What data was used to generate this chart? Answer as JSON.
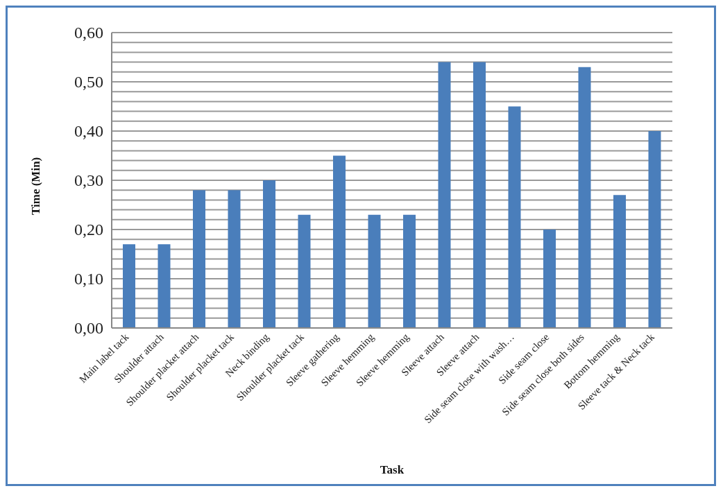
{
  "chart_data": {
    "type": "bar",
    "xlabel": "Task",
    "ylabel": "Time (Min)",
    "categories": [
      "Main label tack",
      "Shoulder attach",
      "Shoulder placket attach",
      "Shoulder placket tack",
      "Neck binding",
      "Shoulder placket tack",
      "Sleeve gathering",
      "Sleeve hemming",
      "Sleeve hemming",
      "Sleeve attach",
      "Sleeve attach",
      "Side seam close with wash…",
      "Side seam close",
      "Side seam close both sides",
      "Bottom hemming",
      "Sleeve tack & Neck tack"
    ],
    "values": [
      0.17,
      0.17,
      0.28,
      0.28,
      0.3,
      0.23,
      0.35,
      0.23,
      0.23,
      0.54,
      0.54,
      0.45,
      0.2,
      0.53,
      0.27,
      0.4
    ],
    "color": "#4a7ebb",
    "ylim": [
      0,
      0.6
    ],
    "yticks": [
      {
        "value": 0,
        "label": "0,00"
      },
      {
        "value": 0.02,
        "label": null
      },
      {
        "value": 0.04,
        "label": null
      },
      {
        "value": 0.06,
        "label": null
      },
      {
        "value": 0.08,
        "label": null
      },
      {
        "value": 0.1,
        "label": "0,10"
      },
      {
        "value": 0.12,
        "label": null
      },
      {
        "value": 0.14,
        "label": null
      },
      {
        "value": 0.16,
        "label": null
      },
      {
        "value": 0.18,
        "label": null
      },
      {
        "value": 0.2,
        "label": "0,20"
      },
      {
        "value": 0.22,
        "label": null
      },
      {
        "value": 0.24,
        "label": null
      },
      {
        "value": 0.26,
        "label": null
      },
      {
        "value": 0.28,
        "label": null
      },
      {
        "value": 0.3,
        "label": "0,30"
      },
      {
        "value": 0.32,
        "label": null
      },
      {
        "value": 0.34,
        "label": null
      },
      {
        "value": 0.36,
        "label": null
      },
      {
        "value": 0.38,
        "label": null
      },
      {
        "value": 0.4,
        "label": "0,40"
      },
      {
        "value": 0.42,
        "label": null
      },
      {
        "value": 0.44,
        "label": null
      },
      {
        "value": 0.46,
        "label": null
      },
      {
        "value": 0.48,
        "label": null
      },
      {
        "value": 0.5,
        "label": "0,50"
      },
      {
        "value": 0.52,
        "label": null
      },
      {
        "value": 0.54,
        "label": null
      },
      {
        "value": 0.56,
        "label": null
      },
      {
        "value": 0.58,
        "label": null
      },
      {
        "value": 0.6,
        "label": "0,60"
      }
    ],
    "grid": "y",
    "legend": false
  }
}
